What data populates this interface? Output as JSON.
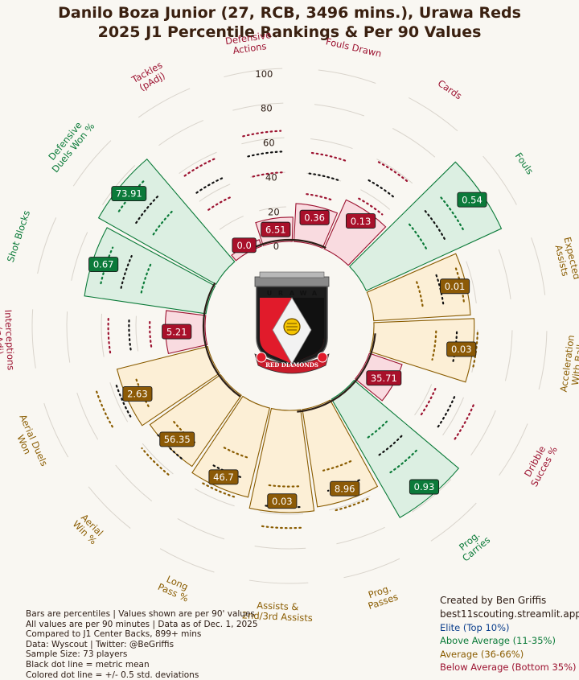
{
  "title": {
    "line1": "Danilo Boza Junior (27, RCB, 3496 mins.), Urawa Reds",
    "line2": "2025 J1 Percentile Rankings & Per 90 Values"
  },
  "chart_data": {
    "type": "polar-bar",
    "radial_ticks": [
      "0",
      "20",
      "40",
      "60",
      "80",
      "100"
    ],
    "rlim": [
      0,
      100
    ],
    "metrics": [
      {
        "name": "Fouls Drawn",
        "percentile": 22,
        "value": "0.36",
        "tier": "below"
      },
      {
        "name": "Cards",
        "percentile": 31,
        "value": "0.13",
        "tier": "below"
      },
      {
        "name": "Fouls",
        "percentile": 86,
        "value": "0.54",
        "tier": "above"
      },
      {
        "name": "Expected\nAssists",
        "percentile": 56,
        "value": "0.01",
        "tier": "average"
      },
      {
        "name": "Acceleration\nWith Ball",
        "percentile": 58,
        "value": "0.03",
        "tier": "average"
      },
      {
        "name": "Dribble\nSucces %",
        "percentile": 20,
        "value": "35.71",
        "tier": "below"
      },
      {
        "name": "Prog.\nCarries",
        "percentile": 79,
        "value": "0.93",
        "tier": "above"
      },
      {
        "name": "Prog.\nPasses",
        "percentile": 57,
        "value": "8.96",
        "tier": "average"
      },
      {
        "name": "Assists &\n2nd/3rd Assists",
        "percentile": 59,
        "value": "0.03",
        "tier": "average"
      },
      {
        "name": "Long\nPass %",
        "percentile": 53,
        "value": "46.7",
        "tier": "average"
      },
      {
        "name": "Aerial\nWin %",
        "percentile": 50,
        "value": "56.35",
        "tier": "average"
      },
      {
        "name": "Aerial Duels\nWon",
        "percentile": 54,
        "value": "2.63",
        "tier": "average"
      },
      {
        "name": "Interceptions\n(pAdj)",
        "percentile": 23,
        "value": "5.21",
        "tier": "below"
      },
      {
        "name": "Shot Blocks",
        "percentile": 71,
        "value": "0.67",
        "tier": "above"
      },
      {
        "name": "Defensive\nDuels Won %",
        "percentile": 78,
        "value": "73.91",
        "tier": "above"
      },
      {
        "name": "Tackles\n(pAdj)",
        "percentile": 4,
        "value": "0.0",
        "tier": "below"
      },
      {
        "name": "Defensive\nActions",
        "percentile": 14,
        "value": "6.51",
        "tier": "below"
      }
    ]
  },
  "colors": {
    "elite": "#0a3e8c",
    "above": "#0a7a38",
    "average": "#8a5c00",
    "below": "#9c1230",
    "fill_above": "#dcefe2",
    "fill_average": "#fcefd6",
    "fill_below": "#f9dbe0",
    "box_above": "#0b7a3a",
    "box_average": "#8c5a06",
    "box_below": "#a8102a",
    "background": "#f9f7f2"
  },
  "logo": {
    "top_letters": [
      "U",
      "R",
      "A",
      "W",
      "A"
    ],
    "bottom_text": "RED DIAMONDS"
  },
  "notes": [
    "Bars are percentiles | Values shown are per 90' values",
    "All values are per 90 minutes | Data as of Dec. 1, 2025",
    "Compared to J1 Center Backs, 899+ mins",
    "Data: Wyscout | Twitter: @BeGriffis",
    "Sample Size: 73 players",
    "Black dot line = metric mean",
    "Colored dot line = +/- 0.5 std. deviations"
  ],
  "credits": {
    "line1": "Created by Ben Griffis",
    "line2": "best11scouting.streamlit.app"
  },
  "legend": [
    {
      "label": "Elite (Top 10%)",
      "tier": "elite"
    },
    {
      "label": "Above Average (11-35%)",
      "tier": "above"
    },
    {
      "label": "Average (36-66%)",
      "tier": "average"
    },
    {
      "label": "Below Average (Bottom 35%)",
      "tier": "below"
    }
  ]
}
